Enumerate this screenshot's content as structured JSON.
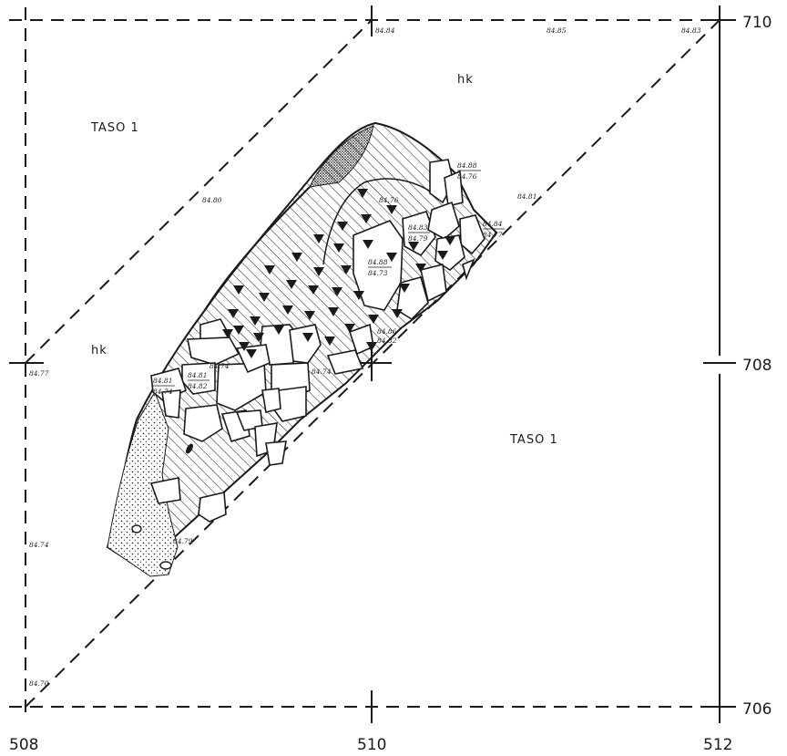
{
  "grid": {
    "x_labels": [
      "508",
      "510",
      "512"
    ],
    "y_labels": [
      "710",
      "708",
      "706"
    ]
  },
  "zones": {
    "layer_upper_left": "TASO 1",
    "layer_lower_right": "TASO 1",
    "hk_top": "hk",
    "hk_left": "hk"
  },
  "elevations": {
    "top_1": "84.84",
    "top_2": "84.85",
    "top_3": "84.83",
    "diag_upper": "84.80",
    "left_mid": "84.77",
    "left_low": "84.74",
    "bottom_left": "84.70",
    "right_diag": "84.81",
    "stone_top_upper": "84.88",
    "stone_top_lower": "84.76",
    "inner_1": "84.76",
    "stone_a_upper": "84.83",
    "stone_a_lower": "84.79",
    "stone_b_upper": "84.84",
    "stone_b_lower": "84.77",
    "stone_c_upper": "84.88",
    "stone_c_lower": "84.73",
    "inner_2": "84.86",
    "inner_3": "84.82",
    "left_stone_upper": "84.81",
    "left_stone_lower": "84.74",
    "left2_upper": "84.81",
    "left2_lower": "84.82",
    "inner_4": "84.74",
    "inner_5": "84.74",
    "inner_6": "84.79"
  },
  "colors": {
    "ink": "#1a1a1a",
    "paper": "#ffffff"
  }
}
